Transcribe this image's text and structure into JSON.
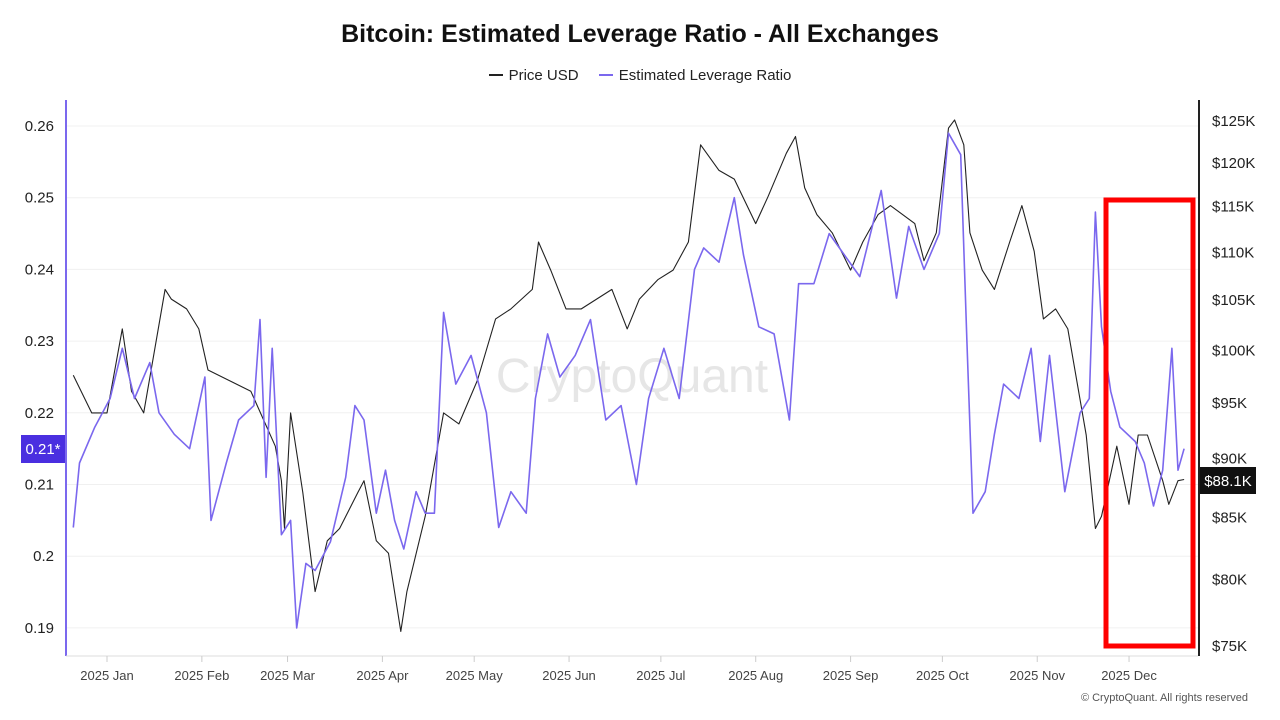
{
  "chart_data": {
    "type": "line",
    "title": "Bitcoin: Estimated Leverage Ratio - All Exchanges",
    "x_unit": "days since 2025-01-01",
    "x_ticks": [
      {
        "label": "2025 Jan",
        "day": 0
      },
      {
        "label": "2025 Feb",
        "day": 31
      },
      {
        "label": "2025 Mar",
        "day": 59
      },
      {
        "label": "2025 Apr",
        "day": 90
      },
      {
        "label": "2025 May",
        "day": 120
      },
      {
        "label": "2025 Jun",
        "day": 151
      },
      {
        "label": "2025 Jul",
        "day": 181
      },
      {
        "label": "2025 Aug",
        "day": 212
      },
      {
        "label": "2025 Sep",
        "day": 243
      },
      {
        "label": "2025 Oct",
        "day": 273
      },
      {
        "label": "2025 Nov",
        "day": 304
      },
      {
        "label": "2025 Dec",
        "day": 334
      }
    ],
    "left_axis": {
      "ticks": [
        0.19,
        0.2,
        0.21,
        0.22,
        0.23,
        0.24,
        0.25,
        0.26
      ],
      "labels": [
        "0.19",
        "0.2",
        "0.21",
        "0.22",
        "0.23",
        "0.24",
        "0.25",
        "0.26"
      ],
      "range": [
        0.1875,
        0.264
      ],
      "color": "#7b68ee"
    },
    "right_axis": {
      "scale": "log",
      "ticks": [
        75,
        80,
        85,
        90,
        95,
        100,
        105,
        110,
        115,
        120,
        125
      ],
      "labels": [
        "$75K",
        "$80K",
        "$85K",
        "$90K",
        "$95K",
        "$100K",
        "$105K",
        "$110K",
        "$115K",
        "$120K",
        "$125K"
      ],
      "unit": "K USD"
    },
    "legend_placement": "top-center",
    "series": [
      {
        "name": "Price USD",
        "axis": "right",
        "color": "#222222",
        "x": [
          -11,
          -5,
          0,
          5,
          8,
          12,
          19,
          21,
          26,
          30,
          33,
          40,
          47,
          55,
          57,
          58,
          60,
          64,
          68,
          72,
          76,
          82,
          84,
          88,
          92,
          96,
          98,
          104,
          110,
          115,
          121,
          127,
          132,
          139,
          141,
          145,
          150,
          155,
          160,
          165,
          170,
          174,
          180,
          185,
          190,
          194,
          200,
          205,
          212,
          216,
          222,
          225,
          228,
          232,
          237,
          243,
          247,
          252,
          256,
          264,
          267,
          271,
          275,
          277,
          280,
          282,
          286,
          290,
          295,
          299,
          303,
          306,
          310,
          314,
          320,
          323,
          325,
          330,
          334,
          337,
          340,
          345,
          347,
          350,
          352
        ],
        "y": [
          97.5,
          94,
          94,
          102,
          96,
          94,
          106,
          105,
          104,
          102,
          98,
          97,
          96,
          91,
          88,
          84,
          94,
          87,
          79,
          83,
          84,
          87,
          88,
          83,
          82,
          76,
          79,
          85,
          94,
          93,
          97,
          103,
          104,
          106,
          111,
          108,
          104,
          104,
          105,
          106,
          102,
          105,
          107,
          108,
          111,
          122,
          119,
          118,
          113,
          116,
          121,
          123,
          117,
          114,
          112,
          108,
          111,
          114,
          115,
          113,
          109,
          112,
          124,
          125,
          122,
          112,
          108,
          106,
          111,
          115,
          110,
          103,
          104,
          102,
          92,
          84,
          85,
          91,
          86,
          92,
          92,
          88,
          86,
          88,
          88.1
        ]
      },
      {
        "name": "Estimated Leverage Ratio",
        "axis": "left",
        "color": "#7b68ee",
        "x": [
          -11,
          -9,
          -4,
          1,
          5,
          9,
          14,
          17,
          22,
          27,
          32,
          34,
          39,
          43,
          48,
          50,
          52,
          54,
          57,
          60,
          62,
          65,
          68,
          73,
          78,
          81,
          84,
          88,
          91,
          94,
          97,
          101,
          104,
          107,
          110,
          114,
          119,
          124,
          128,
          132,
          137,
          140,
          144,
          148,
          153,
          158,
          163,
          168,
          173,
          177,
          182,
          187,
          192,
          195,
          200,
          205,
          208,
          213,
          218,
          223,
          226,
          231,
          236,
          241,
          246,
          253,
          258,
          262,
          267,
          272,
          275,
          279,
          281,
          283,
          287,
          290,
          293,
          298,
          302,
          305,
          308,
          313,
          318,
          321,
          323,
          325,
          328,
          331,
          336,
          339,
          342,
          345,
          348,
          350,
          352
        ],
        "y": [
          0.204,
          0.213,
          0.218,
          0.222,
          0.229,
          0.222,
          0.227,
          0.22,
          0.217,
          0.215,
          0.225,
          0.205,
          0.213,
          0.219,
          0.221,
          0.233,
          0.211,
          0.229,
          0.203,
          0.205,
          0.19,
          0.199,
          0.198,
          0.202,
          0.211,
          0.221,
          0.219,
          0.206,
          0.212,
          0.205,
          0.201,
          0.209,
          0.206,
          0.206,
          0.234,
          0.224,
          0.228,
          0.22,
          0.204,
          0.209,
          0.206,
          0.222,
          0.231,
          0.225,
          0.228,
          0.233,
          0.219,
          0.221,
          0.21,
          0.222,
          0.229,
          0.222,
          0.24,
          0.243,
          0.241,
          0.25,
          0.242,
          0.232,
          0.231,
          0.219,
          0.238,
          0.238,
          0.245,
          0.242,
          0.239,
          0.251,
          0.236,
          0.246,
          0.24,
          0.245,
          0.259,
          0.256,
          0.23,
          0.206,
          0.209,
          0.217,
          0.224,
          0.222,
          0.229,
          0.216,
          0.228,
          0.209,
          0.22,
          0.222,
          0.248,
          0.232,
          0.223,
          0.218,
          0.216,
          0.213,
          0.207,
          0.212,
          0.229,
          0.212,
          0.215
        ]
      }
    ],
    "current_badges": {
      "left": "0.21*",
      "right": "$88.1K"
    },
    "watermark": "CryptoQuant",
    "annotation": "red rectangle highlighting Dec 2025"
  },
  "legend": {
    "price": "Price USD",
    "leverage": "Estimated Leverage Ratio"
  },
  "copyright": "© CryptoQuant. All rights reserved"
}
